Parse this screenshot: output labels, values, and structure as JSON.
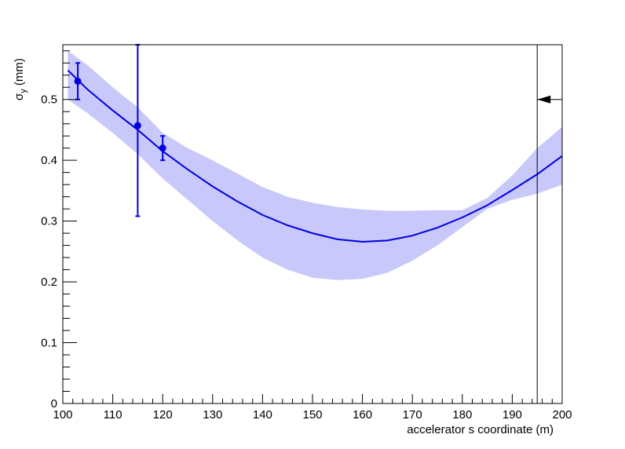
{
  "chart_data": {
    "type": "scatter",
    "xlabel": "accelerator s coordinate (m)",
    "ylabel_symbol": "σ",
    "ylabel_subscript": "y",
    "ylabel_unit": "(mm)",
    "xlim": [
      100,
      200
    ],
    "ylim": [
      0,
      0.59
    ],
    "x_ticks": [
      100,
      110,
      120,
      130,
      140,
      150,
      160,
      170,
      180,
      190,
      200
    ],
    "y_ticks": [
      0,
      0.1,
      0.2,
      0.3,
      0.4,
      0.5
    ],
    "y_tick_labels": [
      "0",
      "0.1",
      "0.2",
      "0.3",
      "0.4",
      "0.5"
    ],
    "grid": false,
    "colors": {
      "series": "#0000e0",
      "band": "#c8c8fa",
      "axis": "#000000",
      "marker_line": "#000000"
    },
    "measurements": {
      "x": [
        103,
        115,
        120
      ],
      "y": [
        0.53,
        0.457,
        0.42
      ],
      "err_low": [
        0.03,
        0.149,
        0.02
      ],
      "err_high": [
        0.03,
        0.133,
        0.02
      ]
    },
    "fit_curve": {
      "x": [
        101,
        105,
        110,
        115,
        120,
        125,
        130,
        135,
        140,
        145,
        150,
        155,
        160,
        165,
        170,
        175,
        180,
        185,
        190,
        195,
        200
      ],
      "y": [
        0.548,
        0.516,
        0.482,
        0.45,
        0.415,
        0.385,
        0.357,
        0.332,
        0.31,
        0.293,
        0.28,
        0.27,
        0.266,
        0.268,
        0.276,
        0.289,
        0.306,
        0.326,
        0.351,
        0.377,
        0.407
      ],
      "low": [
        0.5,
        0.477,
        0.445,
        0.41,
        0.37,
        0.335,
        0.3,
        0.268,
        0.24,
        0.22,
        0.207,
        0.203,
        0.205,
        0.215,
        0.235,
        0.26,
        0.29,
        0.32,
        0.335,
        0.345,
        0.36
      ],
      "high": [
        0.58,
        0.556,
        0.52,
        0.487,
        0.445,
        0.42,
        0.4,
        0.378,
        0.356,
        0.34,
        0.33,
        0.323,
        0.319,
        0.317,
        0.317,
        0.318,
        0.318,
        0.338,
        0.375,
        0.42,
        0.455
      ]
    },
    "marker": {
      "x": 195,
      "y": 0.5,
      "direction": "left"
    }
  }
}
